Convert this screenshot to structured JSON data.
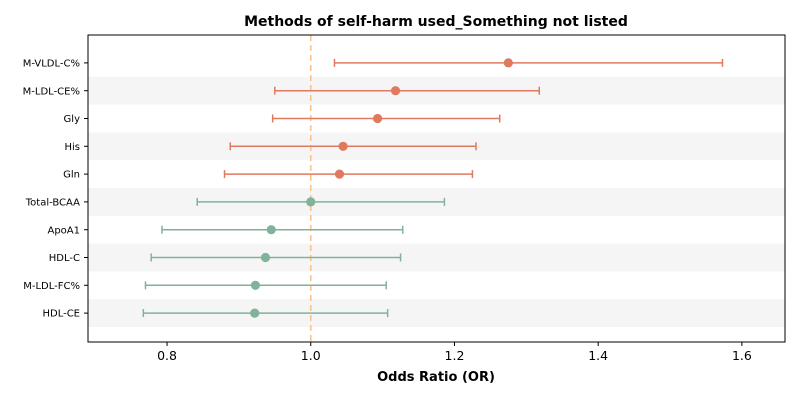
{
  "chart_data": {
    "type": "forest",
    "title": "Methods of self-harm used_Something not listed",
    "xlabel": "Odds Ratio (OR)",
    "ylabel": "",
    "xlim": [
      0.69,
      1.66
    ],
    "xticks": [
      "0.8",
      "1.0",
      "1.2",
      "1.4",
      "1.6"
    ],
    "reference_line": 1.0,
    "reference_color": "#f5c48f",
    "band_color": "#f5f5f5",
    "colors": {
      "positive": "#e07a5f",
      "negative": "#81b29a"
    },
    "items": [
      {
        "label": "M-VLDL-C%",
        "or": 1.275,
        "lower": 1.033,
        "upper": 1.573,
        "group": "positive"
      },
      {
        "label": "M-LDL-CE%",
        "or": 1.118,
        "lower": 0.95,
        "upper": 1.318,
        "group": "positive"
      },
      {
        "label": "Gly",
        "or": 1.093,
        "lower": 0.947,
        "upper": 1.263,
        "group": "positive"
      },
      {
        "label": "His",
        "or": 1.045,
        "lower": 0.888,
        "upper": 1.23,
        "group": "positive"
      },
      {
        "label": "Gln",
        "or": 1.04,
        "lower": 0.88,
        "upper": 1.225,
        "group": "positive"
      },
      {
        "label": "Total-BCAA",
        "or": 1.0,
        "lower": 0.842,
        "upper": 1.186,
        "group": "negative"
      },
      {
        "label": "ApoA1",
        "or": 0.945,
        "lower": 0.793,
        "upper": 1.128,
        "group": "negative"
      },
      {
        "label": "HDL-C",
        "or": 0.937,
        "lower": 0.778,
        "upper": 1.125,
        "group": "negative"
      },
      {
        "label": "M-LDL-FC%",
        "or": 0.923,
        "lower": 0.77,
        "upper": 1.105,
        "group": "negative"
      },
      {
        "label": "HDL-CE",
        "or": 0.922,
        "lower": 0.767,
        "upper": 1.107,
        "group": "negative"
      }
    ]
  }
}
